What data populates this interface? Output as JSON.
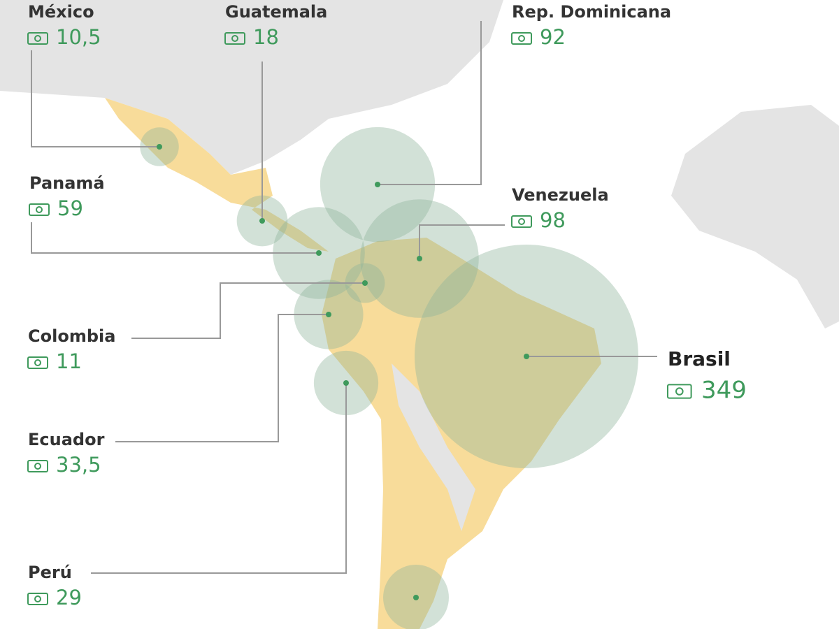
{
  "countries": [
    {
      "name": "México",
      "value": 10.5,
      "label": "10,5"
    },
    {
      "name": "Guatemala",
      "value": 18,
      "label": "18"
    },
    {
      "name": "Rep. Dominicana",
      "value": 92,
      "label": "92"
    },
    {
      "name": "Panamá",
      "value": 59,
      "label": "59"
    },
    {
      "name": "Venezuela",
      "value": 98,
      "label": "98"
    },
    {
      "name": "Colombia",
      "value": 11,
      "label": "11"
    },
    {
      "name": "Ecuador",
      "value": 33.5,
      "label": "33,5"
    },
    {
      "name": "Perú",
      "value": 29,
      "label": "29"
    },
    {
      "name": "Brasil",
      "value": 349,
      "label": "349"
    }
  ]
}
